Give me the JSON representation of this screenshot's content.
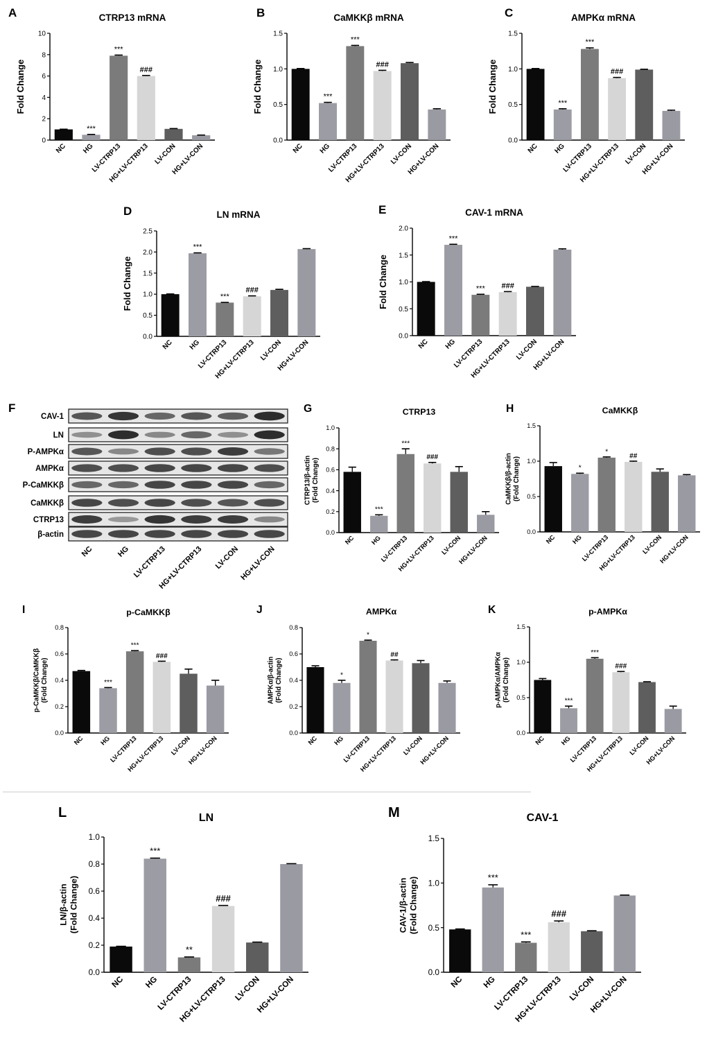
{
  "colors": {
    "bar_series": [
      "#0a0a0a",
      "#9c9ca4",
      "#7b7b7b",
      "#d6d6d6",
      "#5e5e5e",
      "#9a9aa3"
    ],
    "divider": "#c8c8c8"
  },
  "group_labels": [
    "NC",
    "HG",
    "LV-CTRP13",
    "HG+LV-CTRP13",
    "LV-CON",
    "HG+LV-CON"
  ],
  "chart_data": [
    {
      "id": "A",
      "type": "bar",
      "title": "CTRP13 mRNA",
      "ylabel": "Fold Change",
      "categories": [
        "NC",
        "HG",
        "LV-CTRP13",
        "HG+LV-CTRP13",
        "LV-CON",
        "HG+LV-CON"
      ],
      "values": [
        1.0,
        0.5,
        7.9,
        6.0,
        1.05,
        0.45
      ],
      "errors": [
        0.02,
        0.03,
        0.06,
        0.05,
        0.03,
        0.02
      ],
      "annotations": [
        "",
        "***",
        "***",
        "###",
        "",
        ""
      ],
      "ylim": [
        0,
        10
      ],
      "yticks": [
        "0",
        "2",
        "4",
        "6",
        "8",
        "10"
      ]
    },
    {
      "id": "B",
      "type": "bar",
      "title": "CaMKKβ mRNA",
      "ylabel": "Fold Change",
      "categories": [
        "NC",
        "HG",
        "LV-CTRP13",
        "HG+LV-CTRP13",
        "LV-CON",
        "HG+LV-CON"
      ],
      "values": [
        1.0,
        0.52,
        1.32,
        0.97,
        1.08,
        0.43
      ],
      "errors": [
        0.005,
        0.01,
        0.01,
        0.01,
        0.01,
        0.01
      ],
      "annotations": [
        "",
        "***",
        "***",
        "###",
        "",
        ""
      ],
      "ylim": [
        0,
        1.5
      ],
      "yticks": [
        "0.0",
        "0.5",
        "1.0",
        "1.5"
      ]
    },
    {
      "id": "C",
      "type": "bar",
      "title": "AMPKα mRNA",
      "ylabel": "Fold Change",
      "categories": [
        "NC",
        "HG",
        "LV-CTRP13",
        "HG+LV-CTRP13",
        "LV-CON",
        "HG+LV-CON"
      ],
      "values": [
        1.0,
        0.43,
        1.28,
        0.87,
        0.99,
        0.41
      ],
      "errors": [
        0.005,
        0.01,
        0.015,
        0.01,
        0.005,
        0.01
      ],
      "annotations": [
        "",
        "***",
        "***",
        "###",
        "",
        ""
      ],
      "ylim": [
        0,
        1.5
      ],
      "yticks": [
        "0.0",
        "0.5",
        "1.0",
        "1.5"
      ]
    },
    {
      "id": "D",
      "type": "bar",
      "title": "LN mRNA",
      "ylabel": "Fold Change",
      "categories": [
        "NC",
        "HG",
        "LV-CTRP13",
        "HG+LV-CTRP13",
        "LV-CON",
        "HG+LV-CON"
      ],
      "values": [
        1.0,
        1.97,
        0.8,
        0.95,
        1.1,
        2.07
      ],
      "errors": [
        0.005,
        0.01,
        0.005,
        0.01,
        0.015,
        0.01
      ],
      "annotations": [
        "",
        "***",
        "***",
        "###",
        "",
        ""
      ],
      "ylim": [
        0,
        2.5
      ],
      "yticks": [
        "0.0",
        "0.5",
        "1.0",
        "1.5",
        "2.0",
        "2.5"
      ]
    },
    {
      "id": "E",
      "type": "bar",
      "title": "CAV-1 mRNA",
      "ylabel": "Fold Change",
      "categories": [
        "NC",
        "HG",
        "LV-CTRP13",
        "HG+LV-CTRP13",
        "LV-CON",
        "HG+LV-CON"
      ],
      "values": [
        1.0,
        1.69,
        0.76,
        0.81,
        0.91,
        1.6
      ],
      "errors": [
        0.005,
        0.01,
        0.01,
        0.01,
        0.005,
        0.015
      ],
      "annotations": [
        "",
        "***",
        "***",
        "###",
        "",
        ""
      ],
      "ylim": [
        0,
        2.0
      ],
      "yticks": [
        "0.0",
        "0.5",
        "1.0",
        "1.5",
        "2.0"
      ]
    },
    {
      "id": "G",
      "type": "bar",
      "title": "CTRP13",
      "ylabel": "CTRP13/β-actin\n(Fold Change)",
      "categories": [
        "NC",
        "HG",
        "LV-CTRP13",
        "HG+LV-CTRP13",
        "LV-CON",
        "HG+LV-CON"
      ],
      "values": [
        0.58,
        0.16,
        0.75,
        0.66,
        0.58,
        0.17
      ],
      "errors": [
        0.045,
        0.01,
        0.05,
        0.01,
        0.05,
        0.03
      ],
      "annotations": [
        "",
        "***",
        "***",
        "###",
        "",
        ""
      ],
      "ylim": [
        0,
        1.0
      ],
      "yticks": [
        "0.0",
        "0.2",
        "0.4",
        "0.6",
        "0.8",
        "1.0"
      ]
    },
    {
      "id": "H",
      "type": "bar",
      "title": "CaMKKβ",
      "ylabel": "CaMKKβ/β-actin\n(Fold Change)",
      "categories": [
        "NC",
        "HG",
        "LV-CTRP13",
        "HG+LV-CTRP13",
        "LV-CON",
        "HG+LV-CON"
      ],
      "values": [
        0.93,
        0.82,
        1.05,
        0.99,
        0.85,
        0.8
      ],
      "errors": [
        0.05,
        0.01,
        0.01,
        0.01,
        0.04,
        0.01
      ],
      "annotations": [
        "",
        "*",
        "*",
        "##",
        "",
        ""
      ],
      "ylim": [
        0,
        1.5
      ],
      "yticks": [
        "0.0",
        "0.5",
        "1.0",
        "1.5"
      ]
    },
    {
      "id": "I",
      "type": "bar",
      "title": "p-CaMKKβ",
      "ylabel": "p-CaMKKβ/CaMKKβ\n(Fold Change)",
      "categories": [
        "NC",
        "HG",
        "LV-CTRP13",
        "HG+LV-CTRP13",
        "LV-CON",
        "HG+LV-CON"
      ],
      "values": [
        0.47,
        0.34,
        0.62,
        0.54,
        0.45,
        0.36
      ],
      "errors": [
        0.005,
        0.005,
        0.005,
        0.005,
        0.035,
        0.04
      ],
      "annotations": [
        "",
        "***",
        "***",
        "###",
        "",
        ""
      ],
      "ylim": [
        0,
        0.8
      ],
      "yticks": [
        "0.0",
        "0.2",
        "0.4",
        "0.6",
        "0.8"
      ]
    },
    {
      "id": "J",
      "type": "bar",
      "title": "AMPKα",
      "ylabel": "AMPKα/β-actin\n(Fold Change)",
      "categories": [
        "NC",
        "HG",
        "LV-CTRP13",
        "HG+LV-CTRP13",
        "LV-CON",
        "HG+LV-CON"
      ],
      "values": [
        0.5,
        0.38,
        0.7,
        0.55,
        0.53,
        0.38
      ],
      "errors": [
        0.01,
        0.02,
        0.005,
        0.005,
        0.02,
        0.015
      ],
      "annotations": [
        "",
        "*",
        "*",
        "##",
        "",
        ""
      ],
      "ylim": [
        0,
        0.8
      ],
      "yticks": [
        "0.0",
        "0.2",
        "0.4",
        "0.6",
        "0.8"
      ]
    },
    {
      "id": "K",
      "type": "bar",
      "title": "p-AMPKα",
      "ylabel": "p-AMPKα/AMPKα\n(Fold Change)",
      "categories": [
        "NC",
        "HG",
        "LV-CTRP13",
        "HG+LV-CTRP13",
        "LV-CON",
        "HG+LV-CON"
      ],
      "values": [
        0.75,
        0.35,
        1.05,
        0.86,
        0.72,
        0.34
      ],
      "errors": [
        0.02,
        0.03,
        0.015,
        0.01,
        0.005,
        0.04
      ],
      "annotations": [
        "",
        "***",
        "***",
        "###",
        "",
        ""
      ],
      "ylim": [
        0,
        1.5
      ],
      "yticks": [
        "0.0",
        "0.5",
        "1.0",
        "1.5"
      ]
    },
    {
      "id": "L",
      "type": "bar",
      "title": "LN",
      "ylabel": "LN/β-actin\n(Fold Change)",
      "categories": [
        "NC",
        "HG",
        "LV-CTRP13",
        "HG+LV-CTRP13",
        "LV-CON",
        "HG+LV-CON"
      ],
      "values": [
        0.19,
        0.84,
        0.11,
        0.49,
        0.22,
        0.8
      ],
      "errors": [
        0.002,
        0.004,
        0.003,
        0.004,
        0.003,
        0.003
      ],
      "annotations": [
        "",
        "***",
        "**",
        "###",
        "",
        ""
      ],
      "ylim": [
        0,
        1.0
      ],
      "yticks": [
        "0.0",
        "0.2",
        "0.4",
        "0.6",
        "0.8",
        "1.0"
      ]
    },
    {
      "id": "M",
      "type": "bar",
      "title": "CAV-1",
      "ylabel": "CAV-1/β-actin\n(Fold Change)",
      "categories": [
        "NC",
        "HG",
        "LV-CTRP13",
        "HG+LV-CTRP13",
        "LV-CON",
        "HG+LV-CON"
      ],
      "values": [
        0.48,
        0.95,
        0.33,
        0.56,
        0.46,
        0.86
      ],
      "errors": [
        0.005,
        0.03,
        0.01,
        0.015,
        0.005,
        0.005
      ],
      "annotations": [
        "",
        "***",
        "***",
        "###",
        "",
        ""
      ],
      "ylim": [
        0,
        1.5
      ],
      "yticks": [
        "0.0",
        "0.5",
        "1.0",
        "1.5"
      ]
    }
  ],
  "blot": {
    "id": "F",
    "rows": [
      "CAV-1",
      "LN",
      "P-AMPKα",
      "AMPKα",
      "P-CaMKKβ",
      "CaMKKβ",
      "CTRP13",
      "β-actin"
    ],
    "lanes": [
      "NC",
      "HG",
      "LV-CTRP13",
      "HG+LV-CTRP13",
      "LV-CON",
      "HG+LV-CON"
    ],
    "band_intensity": [
      [
        0.7,
        0.9,
        0.6,
        0.7,
        0.65,
        0.95
      ],
      [
        0.35,
        0.95,
        0.4,
        0.6,
        0.35,
        0.95
      ],
      [
        0.7,
        0.4,
        0.75,
        0.75,
        0.85,
        0.5
      ],
      [
        0.75,
        0.75,
        0.8,
        0.8,
        0.8,
        0.75
      ],
      [
        0.6,
        0.6,
        0.8,
        0.8,
        0.8,
        0.6
      ],
      [
        0.8,
        0.75,
        0.8,
        0.75,
        0.7,
        0.75
      ],
      [
        0.85,
        0.3,
        0.9,
        0.85,
        0.85,
        0.4
      ],
      [
        0.8,
        0.8,
        0.8,
        0.8,
        0.8,
        0.8
      ]
    ]
  }
}
